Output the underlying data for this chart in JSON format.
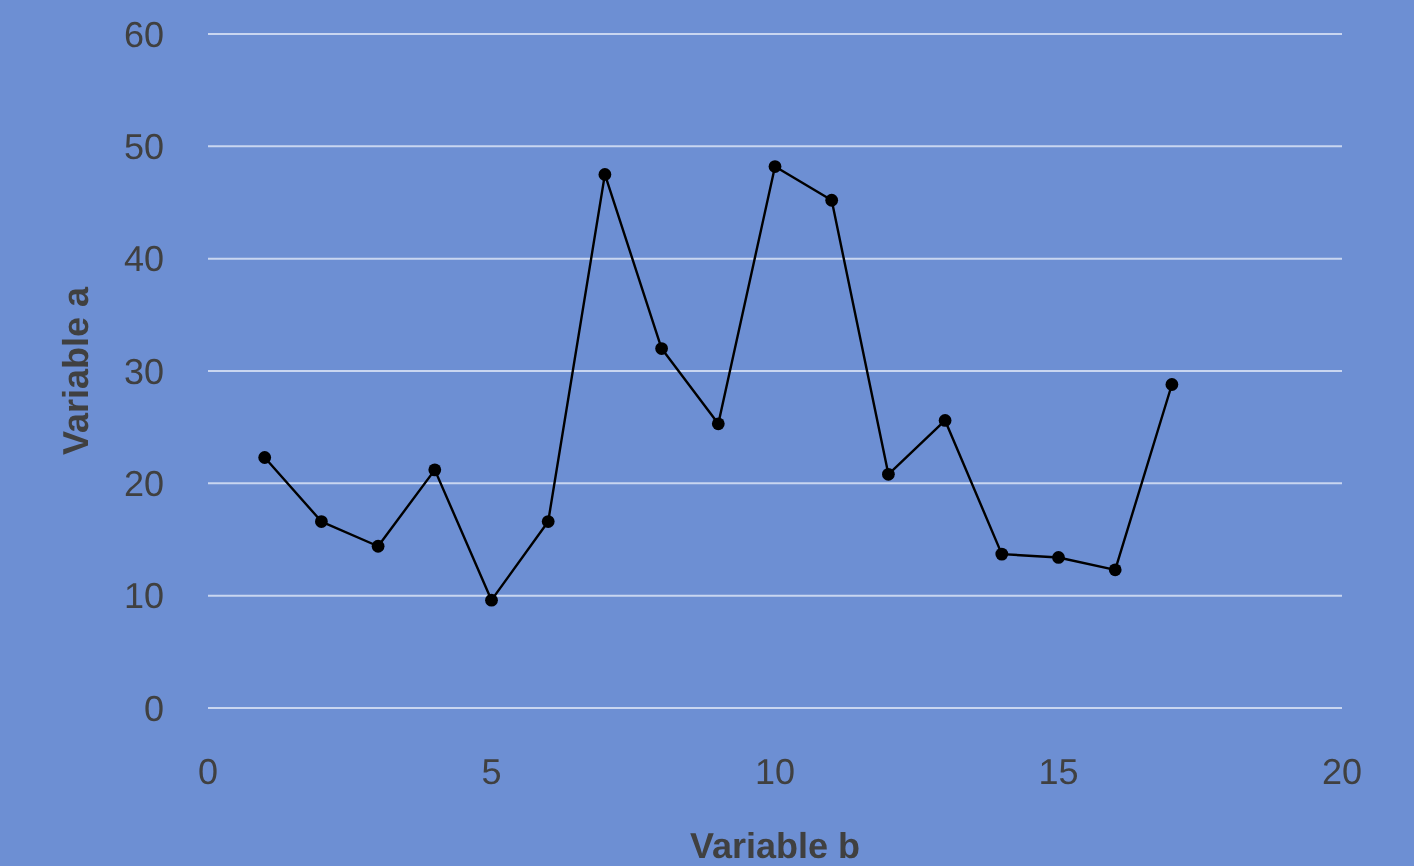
{
  "chart_data": {
    "type": "line",
    "xlabel": "Variable b",
    "ylabel": "Variable a",
    "x": [
      1,
      2,
      3,
      4,
      5,
      6,
      7,
      8,
      9,
      10,
      11,
      12,
      13,
      14,
      15,
      16,
      17
    ],
    "series": [
      {
        "color": "#000000",
        "values": [
          22.3,
          16.6,
          14.4,
          21.2,
          9.6,
          16.6,
          47.5,
          32.0,
          25.3,
          48.2,
          45.2,
          20.8,
          25.6,
          13.7,
          13.4,
          12.3,
          28.8
        ]
      }
    ],
    "xlim": [
      0,
      20
    ],
    "xticks": [
      0,
      5,
      10,
      15,
      20
    ],
    "ylim": [
      0,
      60
    ],
    "yticks": [
      0,
      10,
      20,
      30,
      40,
      50,
      60
    ],
    "grid": "y",
    "marker": "circle",
    "line_style": "solid"
  }
}
